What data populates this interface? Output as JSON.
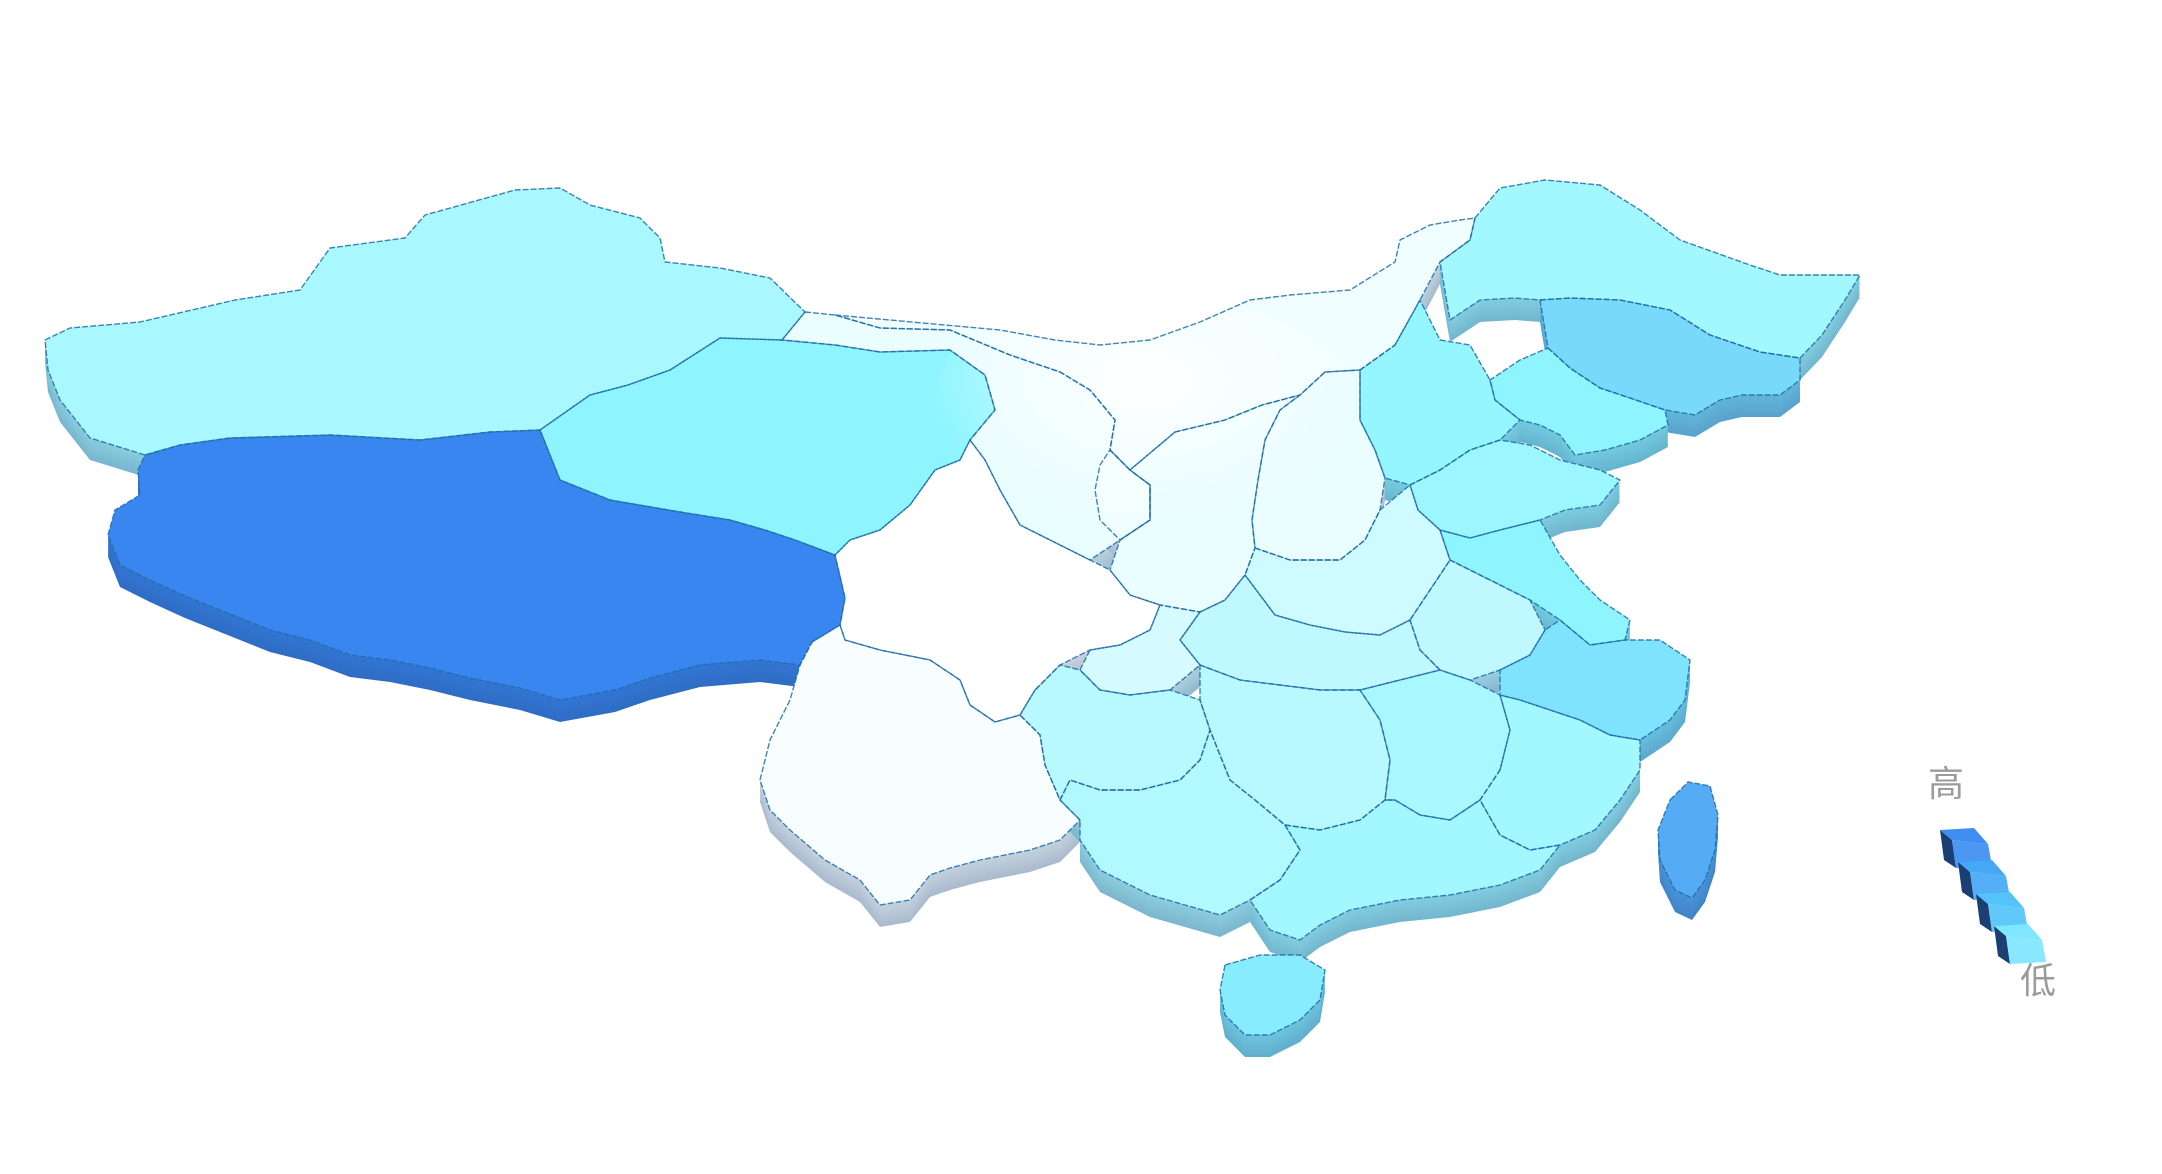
{
  "visual_map": {
    "high_label": "高",
    "low_label": "低",
    "levels": [
      {
        "level": 4,
        "color": "#3d8ef0"
      },
      {
        "level": 3,
        "color": "#45a8f5"
      },
      {
        "level": 2,
        "color": "#52c4fa"
      },
      {
        "level": 1,
        "color": "#7fe6ff"
      }
    ]
  },
  "colors": {
    "low": "#ffffff",
    "mid": "#8ef5ff",
    "high": "#3a86f0",
    "extrusion_dark": "#1a3f73",
    "border": "#1e6fa8"
  },
  "regions": [
    {
      "id": "xinjiang",
      "level": 1.2
    },
    {
      "id": "xizang",
      "level": 4
    },
    {
      "id": "qinghai",
      "level": 1.6
    },
    {
      "id": "gansu",
      "level": 0.3
    },
    {
      "id": "neimenggu",
      "level": 0.2
    },
    {
      "id": "heilongjiang",
      "level": 1.3
    },
    {
      "id": "jilin",
      "level": 2.2
    },
    {
      "id": "liaoning",
      "level": 1.6
    },
    {
      "id": "beijing-hebei",
      "level": 1.5
    },
    {
      "id": "shandong",
      "level": 1.4
    },
    {
      "id": "shanxi",
      "level": 0.3
    },
    {
      "id": "shaanxi",
      "level": 0.3
    },
    {
      "id": "ningxia",
      "level": 0.2
    },
    {
      "id": "henan",
      "level": 0.7
    },
    {
      "id": "jiangsu",
      "level": 1.6
    },
    {
      "id": "anhui",
      "level": 0.9
    },
    {
      "id": "hubei",
      "level": 0.9
    },
    {
      "id": "sichuan",
      "level": 0
    },
    {
      "id": "chongqing",
      "level": 0.6
    },
    {
      "id": "yunnan",
      "level": 0.1
    },
    {
      "id": "guizhou",
      "level": 1.0
    },
    {
      "id": "hunan",
      "level": 1.0
    },
    {
      "id": "jiangxi",
      "level": 1.2
    },
    {
      "id": "zhejiang",
      "level": 2.0
    },
    {
      "id": "fujian",
      "level": 1.3
    },
    {
      "id": "guangxi",
      "level": 1.1
    },
    {
      "id": "guangdong",
      "level": 1.3
    },
    {
      "id": "hainan",
      "level": 1.8
    },
    {
      "id": "taiwan",
      "level": 3.2
    }
  ]
}
